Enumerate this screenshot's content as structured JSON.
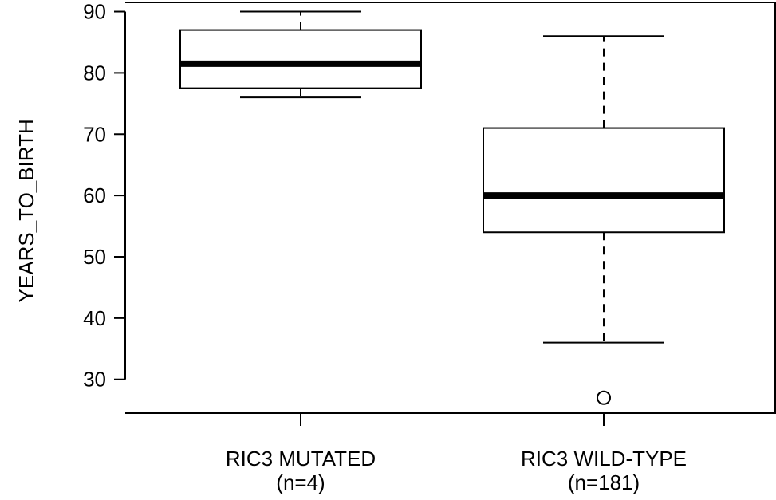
{
  "chart_data": {
    "type": "boxplot",
    "title": "",
    "xlabel": "",
    "ylabel": "YEARS_TO_BIRTH",
    "ylim": [
      24.5,
      91.5
    ],
    "yticks": [
      30,
      40,
      50,
      60,
      70,
      80,
      90
    ],
    "categories": [
      {
        "label": "RIC3 MUTATED",
        "count_label": "(n=4)"
      },
      {
        "label": "RIC3 WILD-TYPE",
        "count_label": "(n=181)"
      }
    ],
    "boxes": [
      {
        "whisker_low": 76,
        "q1": 77.5,
        "median": 81.5,
        "q3": 87,
        "whisker_high": 90,
        "outliers": []
      },
      {
        "whisker_low": 36,
        "q1": 54,
        "median": 60,
        "q3": 71,
        "whisker_high": 86,
        "outliers": [
          27
        ]
      }
    ]
  }
}
